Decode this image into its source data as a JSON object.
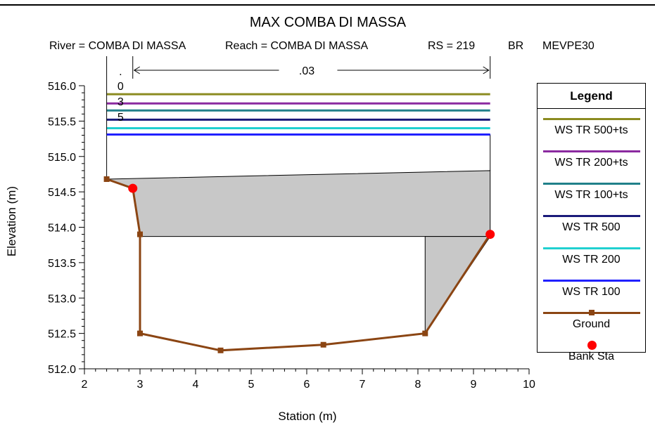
{
  "chart_data": {
    "type": "line",
    "title": "MAX COMBA DI MASSA",
    "subtitle": {
      "river": "River = COMBA DI MASSA",
      "reach": "Reach = COMBA DI MASSA",
      "rs": "RS = 219",
      "br": "BR",
      "profile": "MEVPE30"
    },
    "xlabel": "Station (m)",
    "ylabel": "Elevation (m)",
    "xlim": [
      2,
      10
    ],
    "ylim": [
      512.0,
      516.0
    ],
    "x_ticks": [
      "2",
      "3",
      "4",
      "5",
      "6",
      "7",
      "8",
      "9",
      "10"
    ],
    "y_ticks": [
      "512.0",
      "512.5",
      "513.0",
      "513.5",
      "514.0",
      "514.5",
      "515.0",
      "515.5",
      "516.0"
    ],
    "series": [
      {
        "name": "WS TR 500+ts",
        "color": "#8b8b20",
        "x": [
          2.4,
          9.3
        ],
        "y": [
          515.88,
          515.88
        ]
      },
      {
        "name": "WS TR 200+ts",
        "color": "#8b2aa0",
        "x": [
          2.4,
          9.3
        ],
        "y": [
          515.75,
          515.75
        ]
      },
      {
        "name": "WS TR 100+ts",
        "color": "#20808a",
        "x": [
          2.4,
          9.3
        ],
        "y": [
          515.65,
          515.65
        ]
      },
      {
        "name": "WS TR 500",
        "color": "#1a1a7a",
        "x": [
          2.4,
          9.3
        ],
        "y": [
          515.52,
          515.52
        ]
      },
      {
        "name": "WS TR 200",
        "color": "#20d0d0",
        "x": [
          2.4,
          9.3
        ],
        "y": [
          515.4,
          515.4
        ]
      },
      {
        "name": "WS TR 100",
        "color": "#2020ff",
        "x": [
          2.4,
          9.3
        ],
        "y": [
          515.31,
          515.31
        ]
      },
      {
        "name": "Ground",
        "color": "#8b4513",
        "x": [
          2.4,
          2.87,
          3.0,
          3.0,
          4.45,
          6.3,
          8.13,
          9.3
        ],
        "y": [
          514.68,
          514.55,
          513.9,
          512.5,
          512.26,
          512.34,
          512.5,
          513.9
        ]
      }
    ],
    "bank_sta": {
      "name": "Bank Sta",
      "color": "#ff0000",
      "x": [
        2.87,
        9.3
      ],
      "y": [
        514.55,
        513.9
      ]
    },
    "bridge_deck": {
      "x": [
        2.4,
        9.3
      ],
      "low_chord_left": 514.68,
      "low_chord_right": 513.87,
      "high_chord_left": 514.68,
      "high_chord_right": 514.8,
      "low_chord_flat": 513.87
    },
    "pier_region": {
      "x_left": 8.13,
      "x_right": 9.3,
      "y_bottom": 512.5,
      "y_top": 513.87
    },
    "deck_outline": {
      "x_left": 2.4,
      "x_right": 9.3,
      "y_top": 515.31
    },
    "annotations": {
      "ineffective_labels": [
        ".",
        "0",
        "3",
        "5"
      ],
      "n_value": ".03",
      "arrow_x": [
        2.87,
        9.3
      ]
    },
    "legend": {
      "title": "Legend",
      "placement": "right"
    }
  }
}
